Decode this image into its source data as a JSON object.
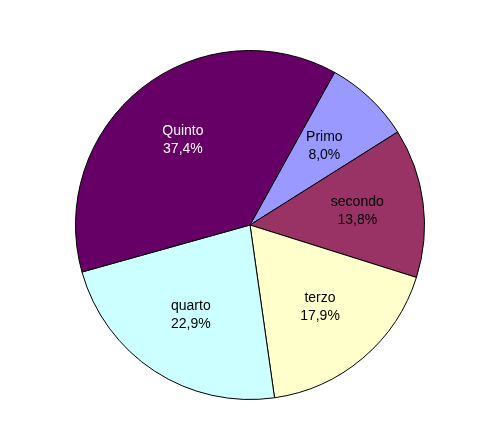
{
  "chart_data": {
    "type": "pie",
    "categories": [
      "Primo",
      "secondo",
      "terzo",
      "quarto",
      "Quinto"
    ],
    "values": [
      8.0,
      13.8,
      17.9,
      22.9,
      37.4
    ],
    "value_labels": [
      "8,0%",
      "13,8%",
      "17,9%",
      "22,9%",
      "37,4%"
    ],
    "colors": [
      "#9999ff",
      "#993366",
      "#ffffcc",
      "#ccffff",
      "#660066"
    ],
    "data_labels": true,
    "legend": "none"
  }
}
